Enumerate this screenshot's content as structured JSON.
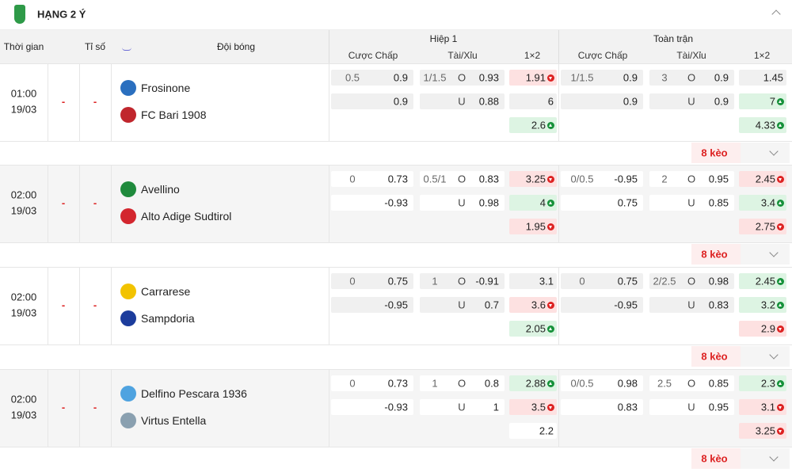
{
  "header": {
    "title": "HẠNG 2 Ý"
  },
  "columns": {
    "time": "Thời gian",
    "score": "Tỉ số",
    "teams": "Đội bóng",
    "first_half": "Hiệp 1",
    "full_time": "Toàn trận",
    "sub": [
      "Cược Chấp",
      "Tài/Xỉu",
      "1×2"
    ]
  },
  "labels": {
    "over": "O",
    "under": "U"
  },
  "matches": [
    {
      "time": "01:00",
      "date": "19/03",
      "score_home": "-",
      "score_away": "-",
      "home": "Frosinone",
      "away": "FC Bari 1908",
      "first_half": {
        "handicap": {
          "line": "0.5",
          "home": "0.9",
          "away": "0.9"
        },
        "total": {
          "line": "1/1.5",
          "over": "0.93",
          "under": "0.88"
        },
        "x12": [
          {
            "value": "1.91",
            "trend": "down"
          },
          {
            "value": "6"
          },
          {
            "value": "2.6",
            "trend": "up"
          }
        ]
      },
      "full_time": {
        "handicap": {
          "line": "1/1.5",
          "home": "0.9",
          "away": "0.9"
        },
        "total": {
          "line": "3",
          "over": "0.9",
          "under": "0.9"
        },
        "x12": [
          {
            "value": "1.45"
          },
          {
            "value": "7",
            "trend": "up"
          },
          {
            "value": "4.33",
            "trend": "up"
          }
        ]
      },
      "more": "8 kèo"
    },
    {
      "time": "02:00",
      "date": "19/03",
      "score_home": "-",
      "score_away": "-",
      "home": "Avellino",
      "away": "Alto Adige Sudtirol",
      "first_half": {
        "handicap": {
          "line": "0",
          "home": "0.73",
          "away": "-0.93"
        },
        "total": {
          "line": "0.5/1",
          "over": "0.83",
          "under": "0.98"
        },
        "x12": [
          {
            "value": "3.25",
            "trend": "down"
          },
          {
            "value": "4",
            "trend": "up"
          },
          {
            "value": "1.95",
            "trend": "down"
          }
        ]
      },
      "full_time": {
        "handicap": {
          "line": "0/0.5",
          "home": "-0.95",
          "away": "0.75"
        },
        "total": {
          "line": "2",
          "over": "0.95",
          "under": "0.85"
        },
        "x12": [
          {
            "value": "2.45",
            "trend": "down"
          },
          {
            "value": "3.4",
            "trend": "up"
          },
          {
            "value": "2.75",
            "trend": "down"
          }
        ]
      },
      "more": "8 kèo"
    },
    {
      "time": "02:00",
      "date": "19/03",
      "score_home": "-",
      "score_away": "-",
      "home": "Carrarese",
      "away": "Sampdoria",
      "first_half": {
        "handicap": {
          "line": "0",
          "home": "0.75",
          "away": "-0.95"
        },
        "total": {
          "line": "1",
          "over": "-0.91",
          "under": "0.7"
        },
        "x12": [
          {
            "value": "3.1"
          },
          {
            "value": "3.6",
            "trend": "down"
          },
          {
            "value": "2.05",
            "trend": "up"
          }
        ]
      },
      "full_time": {
        "handicap": {
          "line": "0",
          "home": "0.75",
          "away": "-0.95"
        },
        "total": {
          "line": "2/2.5",
          "over": "0.98",
          "under": "0.83"
        },
        "x12": [
          {
            "value": "2.45",
            "trend": "up"
          },
          {
            "value": "3.2",
            "trend": "up"
          },
          {
            "value": "2.9",
            "trend": "down"
          }
        ]
      },
      "more": "8 kèo"
    },
    {
      "time": "02:00",
      "date": "19/03",
      "score_home": "-",
      "score_away": "-",
      "home": "Delfino Pescara 1936",
      "away": "Virtus Entella",
      "first_half": {
        "handicap": {
          "line": "0",
          "home": "0.73",
          "away": "-0.93"
        },
        "total": {
          "line": "1",
          "over": "0.8",
          "under": "1"
        },
        "x12": [
          {
            "value": "2.88",
            "trend": "up"
          },
          {
            "value": "3.5",
            "trend": "down"
          },
          {
            "value": "2.2"
          }
        ]
      },
      "full_time": {
        "handicap": {
          "line": "0/0.5",
          "home": "0.98",
          "away": "0.83"
        },
        "total": {
          "line": "2.5",
          "over": "0.85",
          "under": "0.95"
        },
        "x12": [
          {
            "value": "2.3",
            "trend": "up"
          },
          {
            "value": "3.1",
            "trend": "down"
          },
          {
            "value": "3.25",
            "trend": "down"
          }
        ]
      },
      "more": "8 kèo"
    }
  ]
}
